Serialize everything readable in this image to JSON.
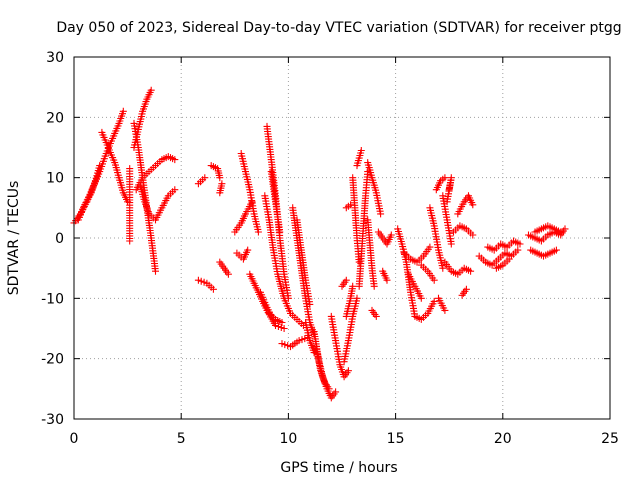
{
  "chart_data": {
    "type": "scatter",
    "title": "Day 050 of 2023, Sidereal Day-to-day VTEC variation (SDTVAR) for receiver ptgg",
    "xlabel": "GPS time / hours",
    "ylabel": "SDTVAR / TECUs",
    "xlim": [
      0,
      25
    ],
    "ylim": [
      -30,
      30
    ],
    "xticks": [
      "0",
      "5",
      "10",
      "15",
      "20",
      "25"
    ],
    "yticks": [
      "30",
      "20",
      "10",
      "0",
      "-10",
      "-20",
      "-30"
    ],
    "grid": true,
    "legend": "none",
    "marker": "plus",
    "color": "#ff0000",
    "series": [
      {
        "segments": [
          [
            [
              0.0,
              2.5
            ],
            [
              0.3,
              4.0
            ],
            [
              0.6,
              6.0
            ],
            [
              0.9,
              8.5
            ],
            [
              1.2,
              11.0
            ],
            [
              1.5,
              14.0
            ],
            [
              1.8,
              16.5
            ],
            [
              2.1,
              19.0
            ],
            [
              2.3,
              21.0
            ]
          ],
          [
            [
              0.2,
              3.0
            ],
            [
              0.5,
              5.5
            ],
            [
              0.8,
              7.5
            ],
            [
              1.0,
              9.5
            ],
            [
              1.2,
              12.0
            ]
          ],
          [
            [
              1.3,
              17.5
            ],
            [
              1.6,
              15.0
            ],
            [
              1.9,
              12.5
            ],
            [
              2.1,
              10.0
            ],
            [
              2.3,
              7.5
            ],
            [
              2.5,
              6.0
            ]
          ],
          [
            [
              2.8,
              15.0
            ],
            [
              3.0,
              18.0
            ],
            [
              3.2,
              21.0
            ],
            [
              3.4,
              23.0
            ],
            [
              3.6,
              24.5
            ]
          ],
          [
            [
              2.8,
              19.0
            ],
            [
              3.0,
              15.0
            ],
            [
              3.2,
              10.0
            ],
            [
              3.4,
              5.0
            ],
            [
              3.6,
              0.0
            ],
            [
              3.8,
              -5.5
            ]
          ],
          [
            [
              2.9,
              8.0
            ],
            [
              3.2,
              10.0
            ],
            [
              3.5,
              11.0
            ],
            [
              3.8,
              12.0
            ],
            [
              4.1,
              13.0
            ],
            [
              4.4,
              13.5
            ],
            [
              4.7,
              13.0
            ]
          ],
          [
            [
              3.1,
              8.5
            ],
            [
              3.3,
              6.0
            ],
            [
              3.5,
              4.0
            ],
            [
              3.8,
              3.0
            ],
            [
              4.1,
              5.0
            ],
            [
              4.4,
              7.0
            ],
            [
              4.7,
              8.0
            ]
          ],
          [
            [
              2.6,
              11.5
            ],
            [
              2.6,
              5.0
            ],
            [
              2.6,
              -0.5
            ]
          ],
          [
            [
              5.8,
              9.0
            ],
            [
              6.1,
              10.0
            ]
          ],
          [
            [
              6.4,
              12.0
            ],
            [
              6.7,
              11.5
            ],
            [
              6.8,
              10.0
            ]
          ],
          [
            [
              6.8,
              7.5
            ],
            [
              6.9,
              9.0
            ]
          ],
          [
            [
              5.8,
              -7.0
            ],
            [
              6.2,
              -7.5
            ],
            [
              6.5,
              -8.5
            ]
          ],
          [
            [
              6.8,
              -4.0
            ],
            [
              7.2,
              -6.0
            ]
          ],
          [
            [
              7.5,
              1.0
            ],
            [
              7.8,
              2.5
            ],
            [
              8.0,
              4.0
            ],
            [
              8.3,
              6.0
            ]
          ],
          [
            [
              7.6,
              -2.5
            ],
            [
              7.9,
              -3.5
            ],
            [
              8.1,
              -2.0
            ]
          ],
          [
            [
              7.8,
              14.0
            ],
            [
              8.0,
              11.0
            ],
            [
              8.2,
              8.0
            ],
            [
              8.4,
              4.0
            ],
            [
              8.6,
              1.0
            ]
          ],
          [
            [
              8.2,
              -6.0
            ],
            [
              8.6,
              -9.0
            ],
            [
              9.0,
              -12.0
            ],
            [
              9.4,
              -14.5
            ],
            [
              9.8,
              -15.0
            ]
          ],
          [
            [
              8.9,
              7.0
            ],
            [
              9.1,
              3.0
            ],
            [
              9.3,
              -2.0
            ],
            [
              9.5,
              -6.0
            ],
            [
              9.8,
              -10.0
            ],
            [
              10.1,
              -12.5
            ],
            [
              10.4,
              -13.5
            ],
            [
              10.7,
              -14.5
            ]
          ],
          [
            [
              9.0,
              18.5
            ],
            [
              9.2,
              13.0
            ],
            [
              9.4,
              7.0
            ],
            [
              9.6,
              0.0
            ],
            [
              9.8,
              -6.0
            ],
            [
              10.0,
              -10.0
            ]
          ],
          [
            [
              8.7,
              -9.0
            ],
            [
              9.0,
              -11.5
            ],
            [
              9.3,
              -13.5
            ]
          ],
          [
            [
              9.2,
              11.0
            ],
            [
              9.4,
              6.0
            ],
            [
              9.6,
              1.0
            ]
          ],
          [
            [
              9.1,
              -12.5
            ],
            [
              9.4,
              -13.5
            ],
            [
              9.7,
              -14.0
            ]
          ],
          [
            [
              9.7,
              -17.5
            ],
            [
              10.1,
              -18.0
            ],
            [
              10.5,
              -17.0
            ],
            [
              10.9,
              -16.5
            ]
          ],
          [
            [
              10.2,
              5.0
            ],
            [
              10.4,
              0.0
            ],
            [
              10.6,
              -5.0
            ],
            [
              10.8,
              -10.0
            ],
            [
              11.0,
              -14.0
            ],
            [
              11.2,
              -16.0
            ]
          ],
          [
            [
              10.4,
              3.0
            ],
            [
              10.6,
              -2.0
            ],
            [
              10.8,
              -7.0
            ],
            [
              11.0,
              -11.0
            ]
          ],
          [
            [
              10.8,
              -14.0
            ],
            [
              11.0,
              -17.0
            ],
            [
              11.2,
              -19.0
            ]
          ],
          [
            [
              11.2,
              -15.5
            ],
            [
              11.4,
              -20.0
            ],
            [
              11.6,
              -23.0
            ],
            [
              11.8,
              -25.0
            ],
            [
              12.0,
              -26.5
            ],
            [
              12.2,
              -25.5
            ]
          ],
          [
            [
              11.3,
              -18.0
            ],
            [
              11.5,
              -22.0
            ],
            [
              11.7,
              -24.0
            ],
            [
              11.9,
              -25.0
            ]
          ],
          [
            [
              12.0,
              -13.0
            ],
            [
              12.2,
              -17.0
            ],
            [
              12.4,
              -21.0
            ],
            [
              12.6,
              -23.0
            ],
            [
              12.8,
              -22.0
            ]
          ],
          [
            [
              12.6,
              -20.5
            ],
            [
              12.8,
              -17.0
            ],
            [
              13.0,
              -13.0
            ],
            [
              13.2,
              -10.0
            ]
          ],
          [
            [
              12.7,
              -13.0
            ],
            [
              12.9,
              -10.0
            ],
            [
              13.0,
              -8.0
            ]
          ],
          [
            [
              12.5,
              -8.0
            ],
            [
              12.7,
              -7.0
            ]
          ],
          [
            [
              13.3,
              -8.0
            ],
            [
              13.4,
              -3.0
            ],
            [
              13.5,
              2.0
            ],
            [
              13.6,
              7.0
            ],
            [
              13.7,
              11.0
            ]
          ],
          [
            [
              13.0,
              10.0
            ],
            [
              13.1,
              5.0
            ],
            [
              13.2,
              0.0
            ],
            [
              13.3,
              -4.0
            ]
          ],
          [
            [
              13.2,
              12.0
            ],
            [
              13.4,
              14.5
            ]
          ],
          [
            [
              12.7,
              5.0
            ],
            [
              12.9,
              5.5
            ]
          ],
          [
            [
              13.7,
              3.0
            ],
            [
              13.9,
              -5.0
            ],
            [
              14.0,
              -8.0
            ]
          ],
          [
            [
              13.9,
              -12.0
            ],
            [
              14.1,
              -13.0
            ]
          ],
          [
            [
              13.7,
              12.5
            ],
            [
              13.9,
              10.0
            ],
            [
              14.1,
              7.5
            ],
            [
              14.3,
              4.0
            ]
          ],
          [
            [
              14.2,
              1.0
            ],
            [
              14.4,
              0.0
            ],
            [
              14.6,
              -1.0
            ],
            [
              14.8,
              0.5
            ]
          ],
          [
            [
              14.4,
              -5.5
            ],
            [
              14.6,
              -7.0
            ]
          ],
          [
            [
              15.1,
              1.5
            ],
            [
              15.3,
              -1.0
            ],
            [
              15.5,
              -4.0
            ],
            [
              15.7,
              -9.0
            ],
            [
              15.9,
              -13.0
            ],
            [
              16.2,
              -13.5
            ],
            [
              16.5,
              -12.5
            ],
            [
              16.8,
              -10.5
            ]
          ],
          [
            [
              15.4,
              -2.5
            ],
            [
              15.7,
              -3.5
            ],
            [
              16.0,
              -4.0
            ],
            [
              16.3,
              -3.0
            ],
            [
              16.6,
              -1.5
            ]
          ],
          [
            [
              15.6,
              -6.0
            ],
            [
              15.9,
              -8.0
            ],
            [
              16.2,
              -10.0
            ]
          ],
          [
            [
              16.2,
              -4.5
            ],
            [
              16.5,
              -5.5
            ],
            [
              16.8,
              -7.0
            ]
          ],
          [
            [
              16.6,
              5.0
            ],
            [
              16.8,
              2.0
            ],
            [
              17.0,
              -2.0
            ],
            [
              17.2,
              -5.0
            ]
          ],
          [
            [
              16.9,
              8.0
            ],
            [
              17.1,
              9.5
            ],
            [
              17.3,
              10.0
            ]
          ],
          [
            [
              17.0,
              -10.0
            ],
            [
              17.3,
              -12.0
            ]
          ],
          [
            [
              17.2,
              7.0
            ],
            [
              17.4,
              3.0
            ],
            [
              17.6,
              -1.0
            ]
          ],
          [
            [
              17.5,
              8.0
            ],
            [
              17.6,
              10.0
            ],
            [
              17.4,
              6.0
            ]
          ],
          [
            [
              17.3,
              -4.0
            ],
            [
              17.6,
              -5.5
            ],
            [
              17.9,
              -6.0
            ],
            [
              18.2,
              -5.0
            ],
            [
              18.5,
              -5.5
            ]
          ],
          [
            [
              17.7,
              1.0
            ],
            [
              18.0,
              2.0
            ],
            [
              18.3,
              1.5
            ],
            [
              18.6,
              0.5
            ]
          ],
          [
            [
              17.9,
              4.0
            ],
            [
              18.2,
              6.0
            ],
            [
              18.4,
              7.0
            ],
            [
              18.6,
              5.5
            ]
          ],
          [
            [
              18.1,
              -9.5
            ],
            [
              18.3,
              -8.5
            ]
          ],
          [
            [
              18.9,
              -3.0
            ],
            [
              19.2,
              -4.0
            ],
            [
              19.5,
              -4.5
            ],
            [
              19.8,
              -3.5
            ],
            [
              20.1,
              -2.5
            ],
            [
              20.4,
              -3.0
            ],
            [
              20.7,
              -2.0
            ]
          ],
          [
            [
              19.3,
              -1.5
            ],
            [
              19.6,
              -2.0
            ],
            [
              19.9,
              -1.0
            ],
            [
              20.2,
              -1.5
            ],
            [
              20.5,
              -0.5
            ],
            [
              20.8,
              -1.0
            ]
          ],
          [
            [
              19.7,
              -5.0
            ],
            [
              20.0,
              -4.5
            ],
            [
              20.3,
              -3.5
            ]
          ],
          [
            [
              21.2,
              0.5
            ],
            [
              21.5,
              0.0
            ],
            [
              21.8,
              -0.5
            ],
            [
              22.1,
              0.5
            ],
            [
              22.4,
              1.0
            ],
            [
              22.7,
              0.5
            ],
            [
              22.9,
              1.5
            ]
          ],
          [
            [
              21.3,
              -2.0
            ],
            [
              21.6,
              -2.5
            ],
            [
              21.9,
              -3.0
            ],
            [
              22.2,
              -2.5
            ],
            [
              22.5,
              -2.0
            ]
          ],
          [
            [
              21.5,
              1.0
            ],
            [
              21.8,
              1.5
            ],
            [
              22.1,
              2.0
            ],
            [
              22.4,
              1.5
            ],
            [
              22.7,
              1.0
            ]
          ]
        ]
      }
    ]
  }
}
